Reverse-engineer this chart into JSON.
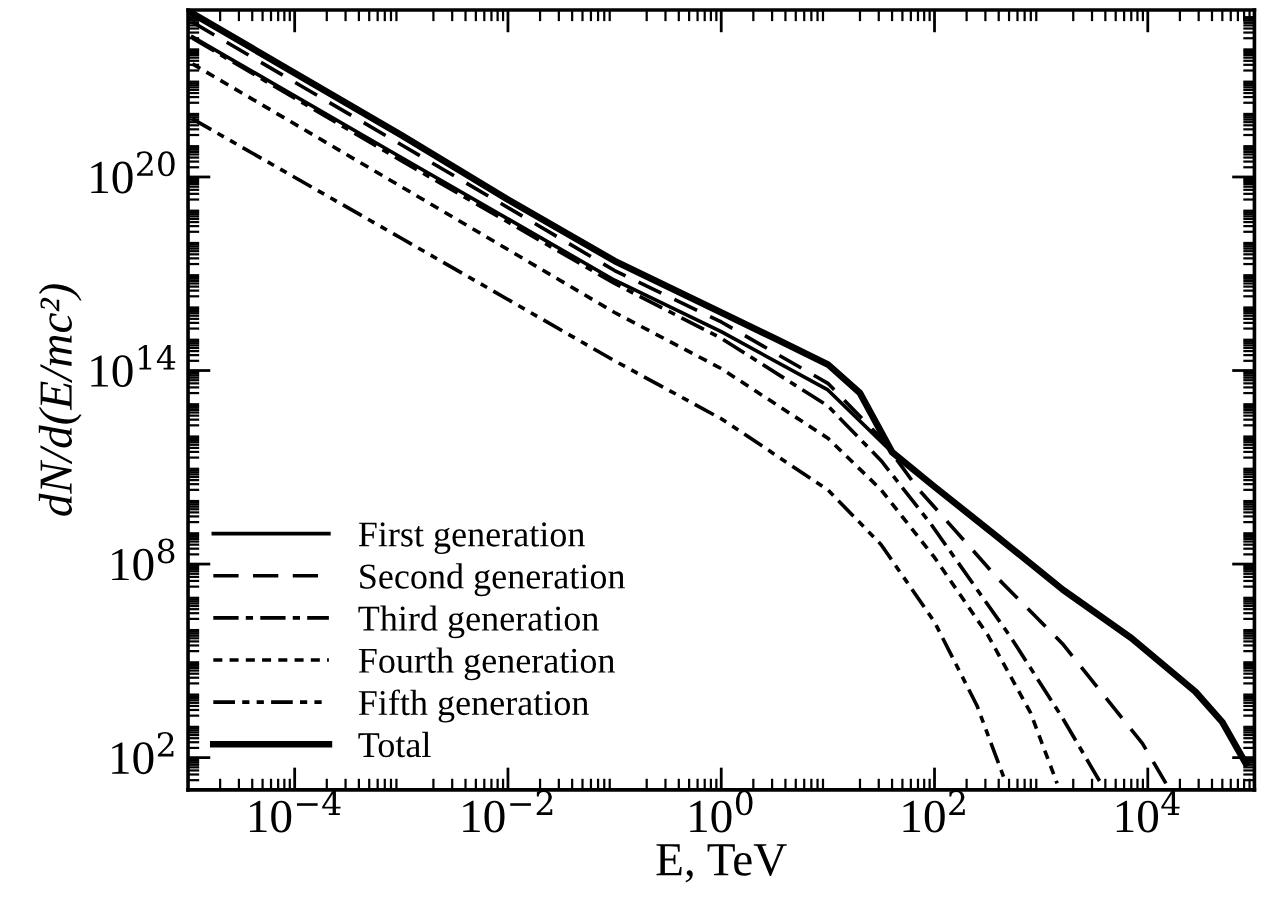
{
  "chart_data": {
    "type": "line",
    "xlabel": "E, TeV",
    "ylabel": "dN/d(E/mc²)",
    "log": "xy",
    "grid": false,
    "legend": "bottom left",
    "xlim": [
      1e-05,
      100000.0
    ],
    "ylim": [
      10,
      1.5e+25
    ],
    "xticks": [
      {
        "value": 0.0001,
        "label": "10$^{−4}$"
      },
      {
        "value": 0.01,
        "label": "10$^{−2}$"
      },
      {
        "value": 1,
        "label": "10$^{0}$"
      },
      {
        "value": 100,
        "label": "10$^{2}$"
      },
      {
        "value": 10000,
        "label": "10$^{4}$"
      }
    ],
    "yticks": [
      {
        "value": 100,
        "label": "10$^{2}$"
      },
      {
        "value": 100000000.0,
        "label": "10$^{8}$"
      },
      {
        "value": 100000000000000.0,
        "label": "10$^{14}$"
      },
      {
        "value": 1e+20,
        "label": "10$^{20}$"
      }
    ],
    "series": [
      {
        "name": "First generation",
        "color": "#000000",
        "line_style": "solid",
        "x": [
          1.1e-05,
          0.001,
          0.1,
          1,
          10,
          40,
          100,
          400,
          1600,
          7000,
          28000,
          50000,
          83000
        ],
        "values": [
          2.2e+24,
          4e+20,
          6.3e+16,
          1600000000000000.0,
          25000000000000.0,
          295000000000.0,
          25000000000.0,
          650000000.0,
          16000000.0,
          510000.0,
          11000.0,
          1260.0,
          66
        ]
      },
      {
        "name": "Second generation",
        "color": "#000000",
        "line_style": "dashed",
        "x": [
          1.1e-05,
          0.001,
          0.1,
          1,
          10,
          31.6,
          69,
          389,
          1585,
          8900,
          14800
        ],
        "values": [
          6.3e+24,
          1e+21,
          1.26e+17,
          3200000000000000.0,
          40000000000000.0,
          800000000000.0,
          23000000000.0,
          37000000.0,
          340000.0,
          275,
          16
        ]
      },
      {
        "name": "Third generation",
        "color": "#000000",
        "line_style": "dashdot",
        "x": [
          1.1e-05,
          0.001,
          0.1,
          1,
          10,
          31.6,
          93,
          525,
          1585,
          3630
        ],
        "values": [
          2e+24,
          3.2e+20,
          5e+16,
          1000000000000000.0,
          8000000000000.0,
          160000000000.0,
          1700000000.0,
          510000.0,
          1700.0,
          16
        ]
      },
      {
        "name": "Fourth generation",
        "color": "#000000",
        "line_style": "dotted",
        "x": [
          1.1e-05,
          0.001,
          0.1,
          1,
          10,
          31.6,
          100,
          316,
          794,
          1410
        ],
        "values": [
          3.2e+23,
          5e+19,
          6300000000000000.0,
          115000000000000.0,
          800000000000.0,
          20000000000.0,
          160000000.0,
          630000.0,
          2500.0,
          16
        ]
      },
      {
        "name": "Fifth generation",
        "color": "#000000",
        "line_style": "dashdotdot",
        "x": [
          1.1e-05,
          0.001,
          0.1,
          1,
          10,
          31.6,
          100,
          251,
          468
        ],
        "values": [
          6.3e+21,
          1.26e+18,
          200000000000000.0,
          3200000000000.0,
          20000000000.0,
          400000000.0,
          1600000.0,
          4000.0,
          16
        ]
      },
      {
        "name": "Total",
        "color": "#000000",
        "line_style": "solid",
        "x": [
          1.1e-05,
          0.001,
          0.01,
          0.1,
          1,
          3.16,
          10,
          20,
          40,
          100,
          400,
          1600,
          7000,
          28000,
          50000,
          83000
        ],
        "values": [
          1.17e+25,
          2e+21,
          2e+19,
          2.5e+17,
          6300000000000000.0,
          1000000000000000.0,
          155000000000000.0,
          20000000000000.0,
          295000000000.0,
          25000000000.0,
          650000000.0,
          16000000.0,
          510000.0,
          11000.0,
          1260.0,
          66
        ]
      }
    ]
  }
}
